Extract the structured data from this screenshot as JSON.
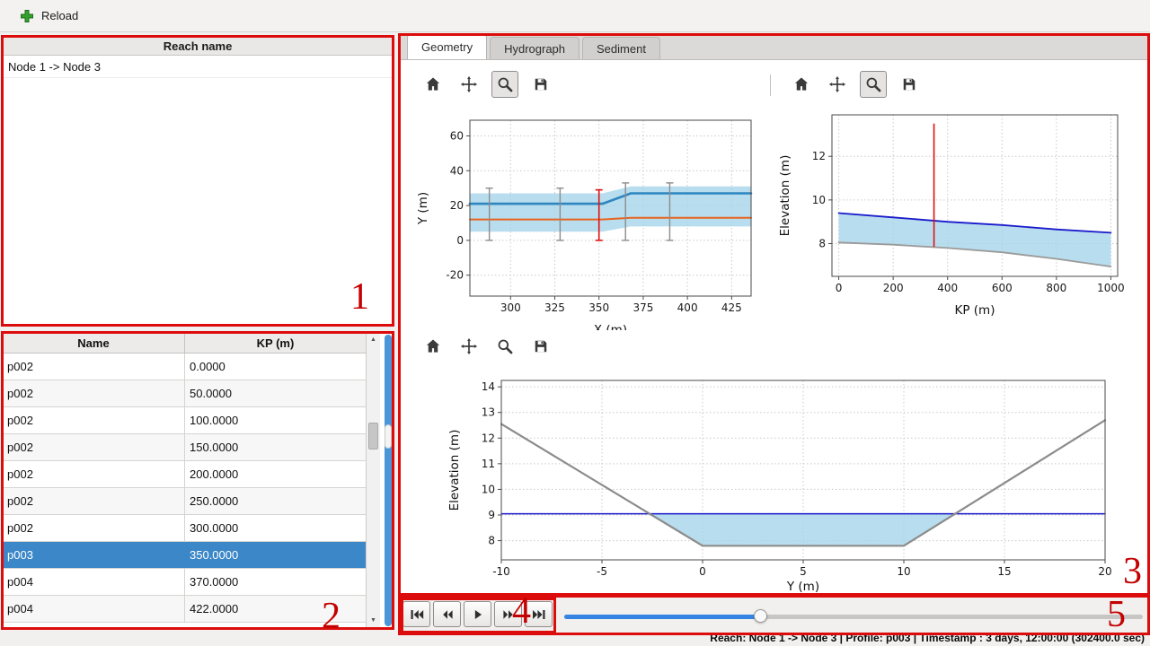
{
  "window": {
    "toolbar": {
      "reload_label": "Reload"
    },
    "status_bar": "Reach: Node 1 -> Node 3 | Profile: p003 | Timestamp : 3 days, 12:00:00 (302400.0 sec)"
  },
  "reach_list": {
    "header": "Reach name",
    "items": [
      "Node 1 -> Node 3"
    ]
  },
  "profile_table": {
    "columns": [
      "Name",
      "KP (m)"
    ],
    "rows": [
      [
        "p002",
        "0.0000"
      ],
      [
        "p002",
        "50.0000"
      ],
      [
        "p002",
        "100.0000"
      ],
      [
        "p002",
        "150.0000"
      ],
      [
        "p002",
        "200.0000"
      ],
      [
        "p002",
        "250.0000"
      ],
      [
        "p002",
        "300.0000"
      ],
      [
        "p003",
        "350.0000"
      ],
      [
        "p004",
        "370.0000"
      ],
      [
        "p004",
        "422.0000"
      ]
    ],
    "selected_row": 7
  },
  "plot_tabs": [
    "Geometry",
    "Hydrograph",
    "Sediment"
  ],
  "active_tab": "Geometry",
  "plot_toolbar_icons": [
    "home",
    "pan",
    "zoom",
    "save"
  ],
  "plot_toolbars": [
    {
      "pressed": "zoom"
    },
    {
      "pressed": "zoom"
    },
    {
      "pressed": ""
    }
  ],
  "scrollbar": {
    "up_glyph": "▲",
    "down_glyph": "▼"
  },
  "player": {
    "buttons": [
      "skip-start",
      "rewind",
      "play",
      "fast-forward",
      "skip-end"
    ],
    "slider_percent": 34
  },
  "annotation_labels": [
    "1",
    "2",
    "3",
    "4",
    "5"
  ],
  "colors": {
    "annotation": "#dd0c0c",
    "selection": "#3b87c8",
    "water_fill": "#a6d4ea",
    "water_line": "#1a1acc",
    "bed_line": "#9a9a9a",
    "center_line": "#e8641e",
    "bank_line": "#2e86c1",
    "slider_fill": "#3584e4"
  },
  "chart_data": [
    {
      "id": "plan-view",
      "type": "line",
      "title": "",
      "xlabel": "X (m)",
      "ylabel": "Y (m)",
      "xlim": [
        277,
        436
      ],
      "ylim": [
        -32,
        69
      ],
      "xticks": [
        300,
        325,
        350,
        375,
        400,
        425
      ],
      "yticks": [
        -20,
        0,
        20,
        40,
        60
      ],
      "grid": true,
      "series": [
        {
          "kind": "band",
          "name": "channel-extent",
          "upper": [
            [
              277,
              27
            ],
            [
              352,
              27
            ],
            [
              368,
              31
            ],
            [
              436,
              31
            ]
          ],
          "lower": [
            [
              277,
              5
            ],
            [
              352,
              5
            ],
            [
              368,
              8
            ],
            [
              436,
              8
            ]
          ],
          "fill": "#a6d4ea",
          "opacity": 0.8
        },
        {
          "kind": "line",
          "name": "bank-line",
          "points": [
            [
              277,
              21
            ],
            [
              352,
              21
            ],
            [
              368,
              27
            ],
            [
              436,
              27
            ]
          ],
          "color": "#2e86c1",
          "width": 2.6
        },
        {
          "kind": "line",
          "name": "center-line",
          "points": [
            [
              277,
              12
            ],
            [
              352,
              12
            ],
            [
              368,
              13
            ],
            [
              436,
              13
            ]
          ],
          "color": "#e8641e",
          "width": 2
        },
        {
          "kind": "vlines",
          "name": "section-markers",
          "lines": [
            [
              288,
              0,
              30
            ],
            [
              328,
              0,
              30
            ],
            [
              365,
              0,
              33
            ],
            [
              390,
              0,
              33
            ]
          ],
          "color": "#8c8c8c",
          "width": 1.4,
          "caps": true
        },
        {
          "kind": "vlines",
          "name": "selected-section-marker",
          "lines": [
            [
              350,
              0,
              29
            ]
          ],
          "color": "#e01010",
          "width": 1.6,
          "caps": true
        }
      ]
    },
    {
      "id": "long-profile",
      "type": "line",
      "title": "",
      "xlabel": "KP (m)",
      "ylabel": "Elevation (m)",
      "xlim": [
        -25,
        1025
      ],
      "ylim": [
        6.5,
        13.9
      ],
      "xticks": [
        0,
        200,
        400,
        600,
        800,
        1000
      ],
      "yticks": [
        8,
        10,
        12
      ],
      "grid": true,
      "series": [
        {
          "kind": "band",
          "name": "water-depth",
          "upper": [
            [
              0,
              9.4
            ],
            [
              200,
              9.2
            ],
            [
              400,
              9.0
            ],
            [
              600,
              8.85
            ],
            [
              800,
              8.65
            ],
            [
              1000,
              8.5
            ]
          ],
          "lower": [
            [
              0,
              8.05
            ],
            [
              200,
              7.95
            ],
            [
              400,
              7.8
            ],
            [
              600,
              7.6
            ],
            [
              800,
              7.3
            ],
            [
              1000,
              6.95
            ]
          ],
          "fill": "#a6d4ea",
          "opacity": 0.8
        },
        {
          "kind": "line",
          "name": "water-surface",
          "points": [
            [
              0,
              9.4
            ],
            [
              200,
              9.2
            ],
            [
              400,
              9.0
            ],
            [
              600,
              8.85
            ],
            [
              800,
              8.65
            ],
            [
              1000,
              8.5
            ]
          ],
          "color": "#1a1acc",
          "width": 1.8
        },
        {
          "kind": "line",
          "name": "bed-profile",
          "points": [
            [
              0,
              8.05
            ],
            [
              200,
              7.95
            ],
            [
              400,
              7.8
            ],
            [
              600,
              7.6
            ],
            [
              800,
              7.3
            ],
            [
              1000,
              6.95
            ]
          ],
          "color": "#9a9a9a",
          "width": 1.8
        },
        {
          "kind": "vlines",
          "name": "selected-profile-marker",
          "lines": [
            [
              350,
              7.85,
              13.5
            ]
          ],
          "color": "#e01010",
          "width": 1.6,
          "caps": false
        }
      ]
    },
    {
      "id": "cross-section",
      "type": "line",
      "title": "",
      "xlabel": "Y (m)",
      "ylabel": "Elevation (m)",
      "xlim": [
        -10,
        20
      ],
      "ylim": [
        7.25,
        14.25
      ],
      "xticks": [
        -10,
        -5,
        0,
        5,
        10,
        15,
        20
      ],
      "yticks": [
        8,
        9,
        10,
        11,
        12,
        13,
        14
      ],
      "grid": true,
      "series": [
        {
          "kind": "band",
          "name": "water-area",
          "upper": [
            [
              -2.63,
              9.05
            ],
            [
              12.55,
              9.05
            ]
          ],
          "lower": [
            [
              -2.63,
              9.05
            ],
            [
              0,
              7.8
            ],
            [
              10,
              7.8
            ],
            [
              12.55,
              9.05
            ]
          ],
          "fill": "#a6d4ea",
          "opacity": 0.8
        },
        {
          "kind": "line",
          "name": "water-level",
          "points": [
            [
              -10,
              9.05
            ],
            [
              20,
              9.05
            ]
          ],
          "color": "#1a1acc",
          "width": 1.5
        },
        {
          "kind": "line",
          "name": "ground-line",
          "points": [
            [
              -10,
              12.55
            ],
            [
              0,
              7.8
            ],
            [
              10,
              7.8
            ],
            [
              20,
              12.7
            ]
          ],
          "color": "#8c8c8c",
          "width": 2.2
        }
      ]
    }
  ]
}
